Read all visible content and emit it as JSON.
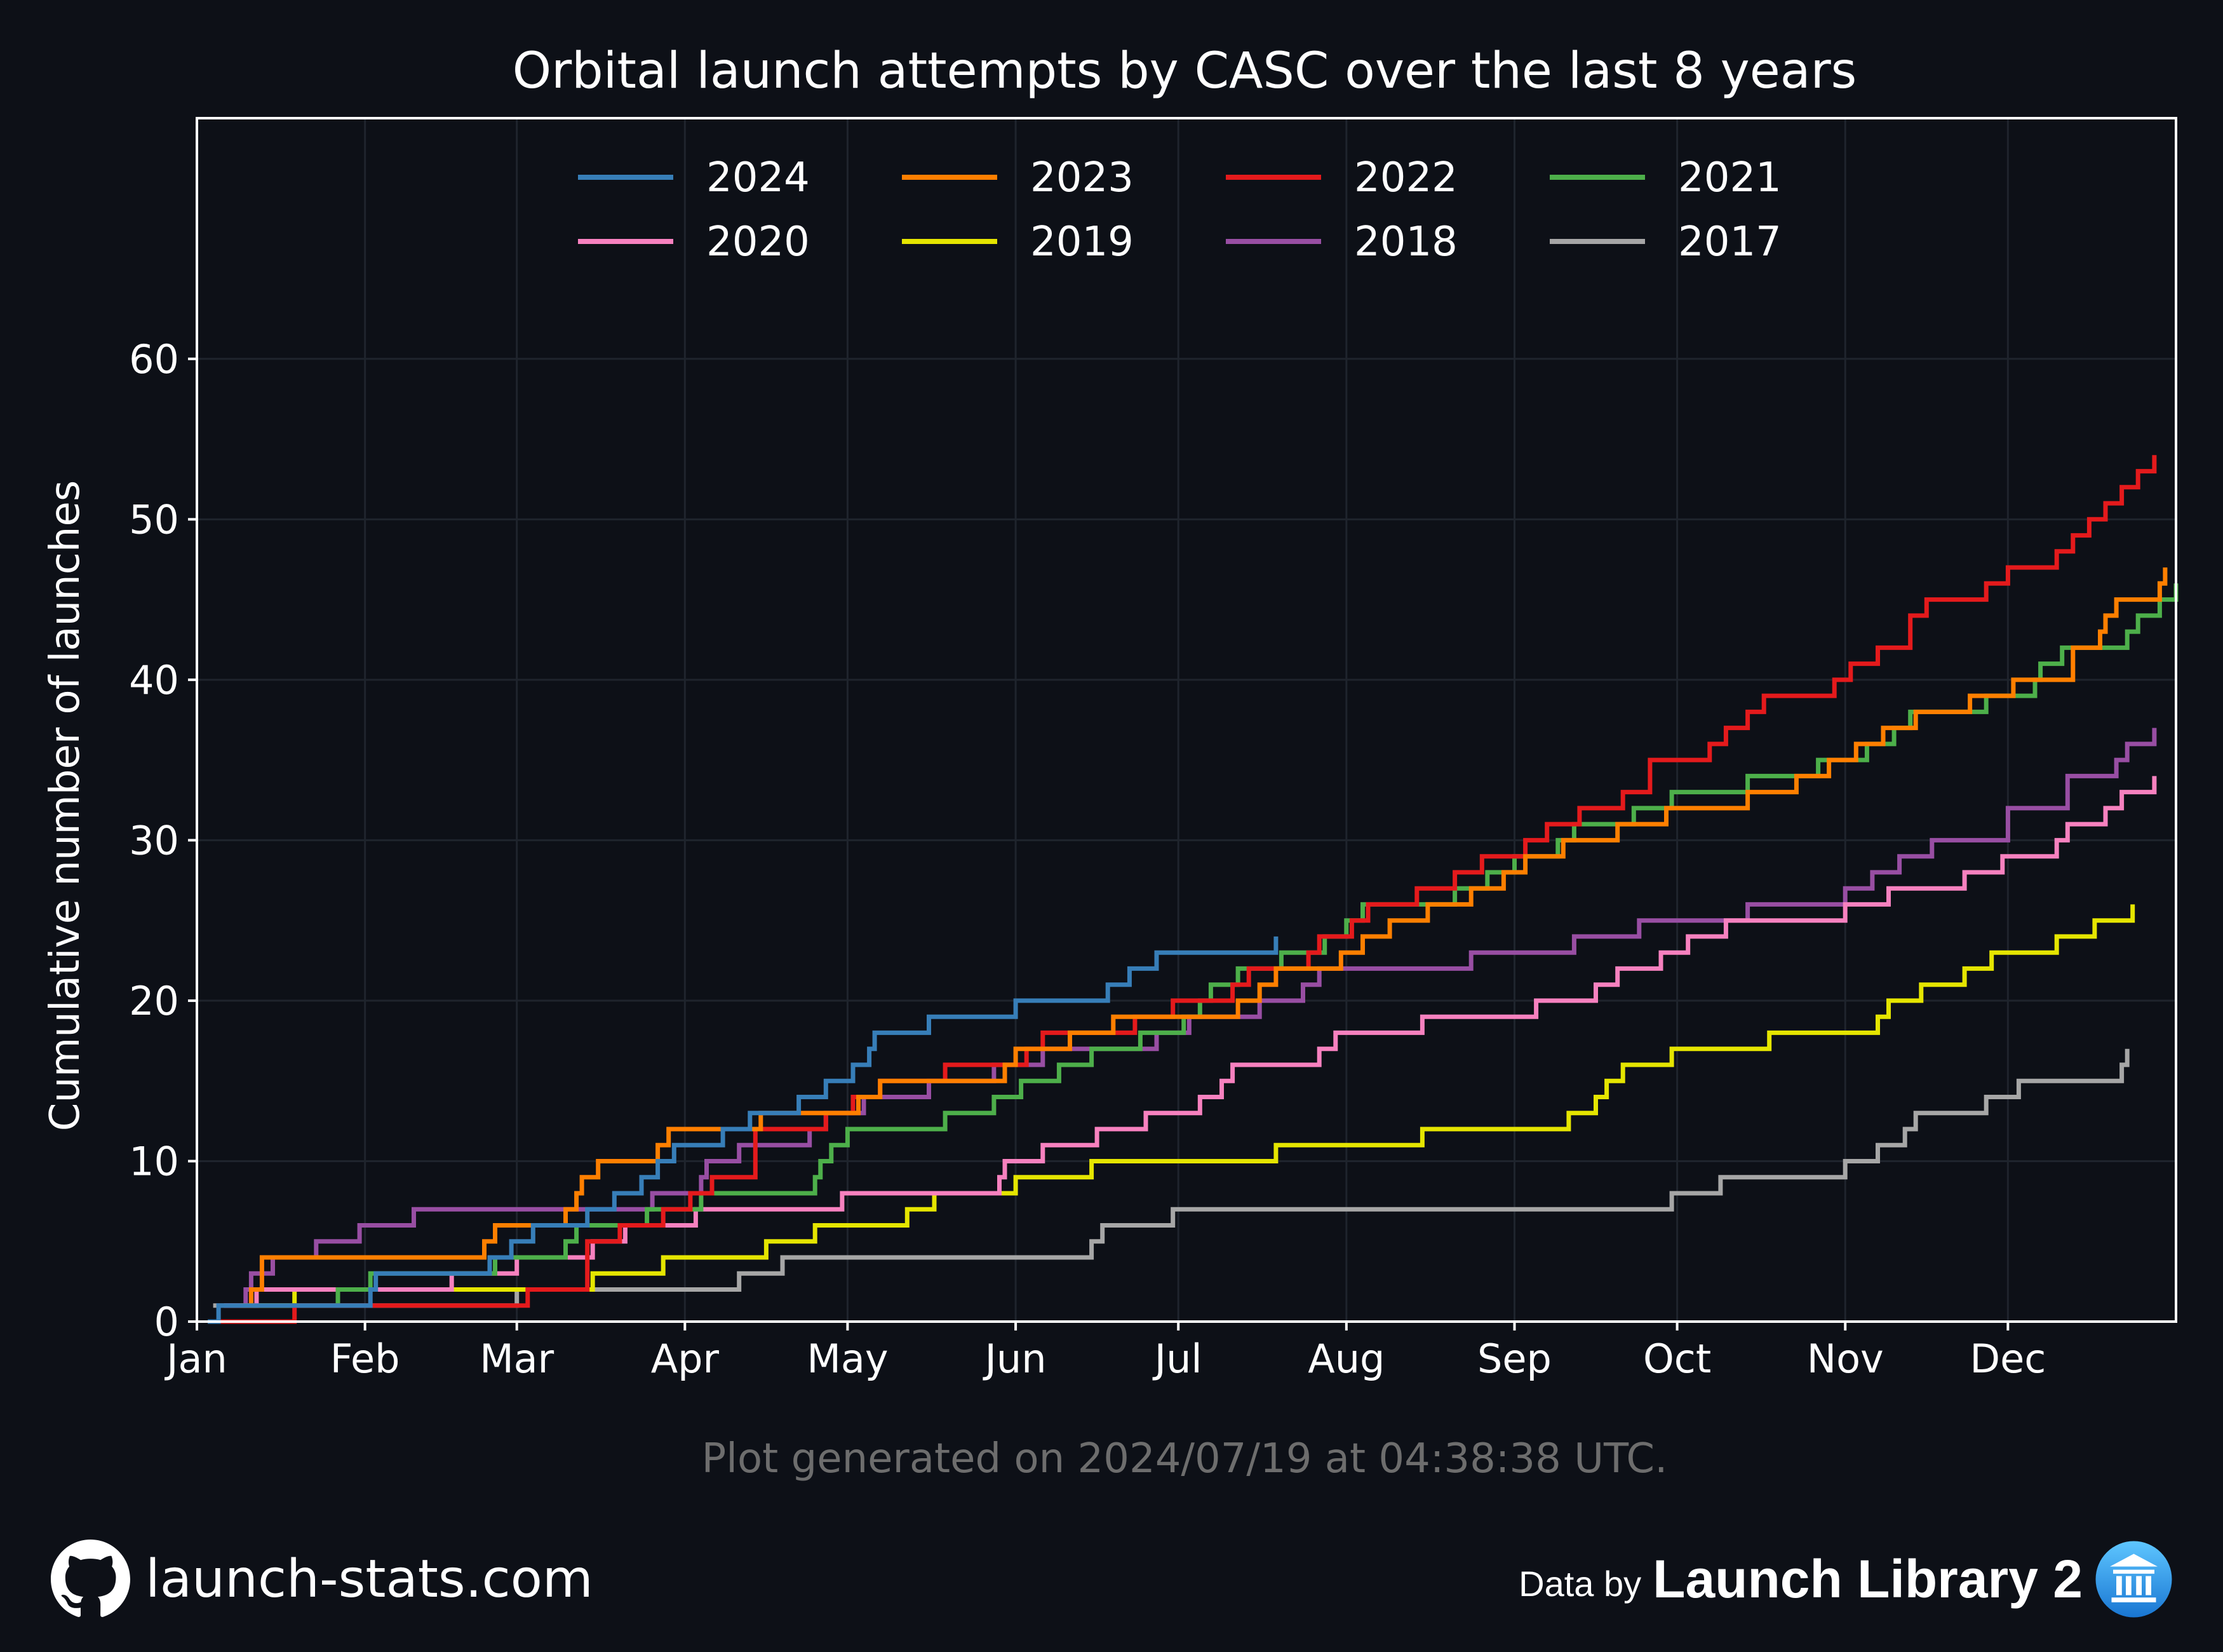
{
  "chart_data": {
    "type": "line",
    "title": "Orbital launch attempts by CASC over the last 8 years",
    "ylabel": "Cumulative number of launches",
    "xlabel": "",
    "x_tick_labels": [
      "Jan",
      "Feb",
      "Mar",
      "Apr",
      "May",
      "Jun",
      "Jul",
      "Aug",
      "Sep",
      "Oct",
      "Nov",
      "Dec"
    ],
    "y_ticks": [
      0,
      10,
      20,
      30,
      40,
      50,
      60
    ],
    "xlim_day_of_year": [
      1,
      366
    ],
    "ylim": [
      0,
      75
    ],
    "grid": true,
    "legend_position": "top-center",
    "step": true,
    "series": [
      {
        "name": "2024",
        "color": "#377eb8",
        "points": [
          [
            3,
            0
          ],
          [
            5,
            1
          ],
          [
            33,
            2
          ],
          [
            34,
            3
          ],
          [
            55,
            4
          ],
          [
            59,
            5
          ],
          [
            63,
            6
          ],
          [
            73,
            7
          ],
          [
            78,
            8
          ],
          [
            83,
            9
          ],
          [
            86,
            10
          ],
          [
            89,
            11
          ],
          [
            98,
            12
          ],
          [
            103,
            13
          ],
          [
            112,
            14
          ],
          [
            117,
            15
          ],
          [
            122,
            16
          ],
          [
            125,
            17
          ],
          [
            126,
            18
          ],
          [
            136,
            19
          ],
          [
            152,
            20
          ],
          [
            169,
            21
          ],
          [
            173,
            22
          ],
          [
            178,
            23
          ],
          [
            200,
            24
          ]
        ]
      },
      {
        "name": "2023",
        "color": "#ff7f00",
        "points": [
          [
            9,
            1
          ],
          [
            11,
            2
          ],
          [
            13,
            4
          ],
          [
            54,
            5
          ],
          [
            56,
            6
          ],
          [
            69,
            7
          ],
          [
            71,
            8
          ],
          [
            72,
            9
          ],
          [
            75,
            10
          ],
          [
            86,
            11
          ],
          [
            88,
            12
          ],
          [
            105,
            13
          ],
          [
            123,
            14
          ],
          [
            127,
            15
          ],
          [
            150,
            16
          ],
          [
            152,
            17
          ],
          [
            162,
            18
          ],
          [
            170,
            19
          ],
          [
            193,
            20
          ],
          [
            197,
            21
          ],
          [
            200,
            22
          ],
          [
            212,
            23
          ],
          [
            216,
            24
          ],
          [
            221,
            25
          ],
          [
            228,
            26
          ],
          [
            236,
            27
          ],
          [
            242,
            28
          ],
          [
            246,
            29
          ],
          [
            253,
            30
          ],
          [
            263,
            31
          ],
          [
            272,
            32
          ],
          [
            287,
            33
          ],
          [
            296,
            34
          ],
          [
            302,
            35
          ],
          [
            307,
            36
          ],
          [
            312,
            37
          ],
          [
            318,
            38
          ],
          [
            328,
            39
          ],
          [
            336,
            40
          ],
          [
            347,
            42
          ],
          [
            352,
            43
          ],
          [
            353,
            44
          ],
          [
            355,
            45
          ],
          [
            363,
            46
          ],
          [
            364,
            47
          ]
        ]
      },
      {
        "name": "2022",
        "color": "#e41a1c",
        "points": [
          [
            4,
            0
          ],
          [
            19,
            1
          ],
          [
            62,
            2
          ],
          [
            73,
            5
          ],
          [
            79,
            6
          ],
          [
            87,
            7
          ],
          [
            92,
            8
          ],
          [
            96,
            9
          ],
          [
            104,
            12
          ],
          [
            117,
            13
          ],
          [
            122,
            14
          ],
          [
            127,
            15
          ],
          [
            139,
            16
          ],
          [
            154,
            17
          ],
          [
            157,
            18
          ],
          [
            174,
            19
          ],
          [
            181,
            20
          ],
          [
            192,
            21
          ],
          [
            195,
            22
          ],
          [
            206,
            23
          ],
          [
            208,
            24
          ],
          [
            214,
            25
          ],
          [
            217,
            26
          ],
          [
            226,
            27
          ],
          [
            233,
            28
          ],
          [
            238,
            29
          ],
          [
            246,
            30
          ],
          [
            250,
            31
          ],
          [
            256,
            32
          ],
          [
            264,
            33
          ],
          [
            269,
            35
          ],
          [
            280,
            36
          ],
          [
            283,
            37
          ],
          [
            287,
            38
          ],
          [
            290,
            39
          ],
          [
            303,
            40
          ],
          [
            306,
            41
          ],
          [
            311,
            42
          ],
          [
            317,
            44
          ],
          [
            320,
            45
          ],
          [
            331,
            46
          ],
          [
            335,
            47
          ],
          [
            344,
            48
          ],
          [
            347,
            49
          ],
          [
            350,
            50
          ],
          [
            353,
            51
          ],
          [
            356,
            52
          ],
          [
            359,
            53
          ],
          [
            362,
            54
          ]
        ]
      },
      {
        "name": "2021",
        "color": "#4daf4a",
        "points": [
          [
            18,
            1
          ],
          [
            27,
            2
          ],
          [
            33,
            3
          ],
          [
            50,
            3
          ],
          [
            56,
            4
          ],
          [
            69,
            5
          ],
          [
            71,
            6
          ],
          [
            84,
            7
          ],
          [
            94,
            8
          ],
          [
            115,
            9
          ],
          [
            116,
            10
          ],
          [
            118,
            11
          ],
          [
            121,
            12
          ],
          [
            139,
            13
          ],
          [
            148,
            14
          ],
          [
            153,
            15
          ],
          [
            160,
            16
          ],
          [
            166,
            17
          ],
          [
            175,
            18
          ],
          [
            183,
            19
          ],
          [
            186,
            20
          ],
          [
            188,
            21
          ],
          [
            193,
            22
          ],
          [
            201,
            23
          ],
          [
            209,
            24
          ],
          [
            213,
            25
          ],
          [
            216,
            26
          ],
          [
            233,
            27
          ],
          [
            239,
            28
          ],
          [
            244,
            29
          ],
          [
            252,
            30
          ],
          [
            255,
            31
          ],
          [
            266,
            32
          ],
          [
            273,
            33
          ],
          [
            287,
            34
          ],
          [
            300,
            35
          ],
          [
            309,
            36
          ],
          [
            314,
            37
          ],
          [
            317,
            38
          ],
          [
            331,
            39
          ],
          [
            340,
            40
          ],
          [
            341,
            41
          ],
          [
            345,
            42
          ],
          [
            357,
            43
          ],
          [
            359,
            44
          ],
          [
            363,
            45
          ],
          [
            366,
            46
          ]
        ]
      },
      {
        "name": "2020",
        "color": "#f781bf",
        "points": [
          [
            6,
            1
          ],
          [
            12,
            2
          ],
          [
            48,
            3
          ],
          [
            60,
            4
          ],
          [
            74,
            5
          ],
          [
            80,
            6
          ],
          [
            93,
            7
          ],
          [
            120,
            8
          ],
          [
            149,
            9
          ],
          [
            150,
            10
          ],
          [
            157,
            11
          ],
          [
            167,
            12
          ],
          [
            176,
            13
          ],
          [
            186,
            14
          ],
          [
            190,
            15
          ],
          [
            192,
            16
          ],
          [
            208,
            17
          ],
          [
            211,
            18
          ],
          [
            227,
            19
          ],
          [
            248,
            20
          ],
          [
            259,
            21
          ],
          [
            263,
            22
          ],
          [
            271,
            23
          ],
          [
            276,
            24
          ],
          [
            283,
            25
          ],
          [
            305,
            26
          ],
          [
            313,
            27
          ],
          [
            327,
            28
          ],
          [
            334,
            29
          ],
          [
            344,
            30
          ],
          [
            346,
            31
          ],
          [
            353,
            32
          ],
          [
            356,
            33
          ],
          [
            362,
            34
          ]
        ]
      },
      {
        "name": "2019",
        "color": "#e5e500",
        "points": [
          [
            9,
            1
          ],
          [
            19,
            2
          ],
          [
            74,
            3
          ],
          [
            87,
            4
          ],
          [
            106,
            5
          ],
          [
            115,
            6
          ],
          [
            132,
            7
          ],
          [
            137,
            8
          ],
          [
            152,
            9
          ],
          [
            166,
            10
          ],
          [
            200,
            11
          ],
          [
            227,
            12
          ],
          [
            254,
            13
          ],
          [
            259,
            14
          ],
          [
            261,
            15
          ],
          [
            264,
            16
          ],
          [
            273,
            17
          ],
          [
            291,
            18
          ],
          [
            311,
            19
          ],
          [
            313,
            20
          ],
          [
            319,
            21
          ],
          [
            327,
            22
          ],
          [
            332,
            23
          ],
          [
            344,
            24
          ],
          [
            351,
            25
          ],
          [
            358,
            26
          ]
        ]
      },
      {
        "name": "2018",
        "color": "#984ea3",
        "points": [
          [
            9,
            1
          ],
          [
            10,
            2
          ],
          [
            11,
            3
          ],
          [
            15,
            4
          ],
          [
            23,
            5
          ],
          [
            31,
            6
          ],
          [
            41,
            7
          ],
          [
            78,
            7
          ],
          [
            85,
            8
          ],
          [
            94,
            9
          ],
          [
            95,
            10
          ],
          [
            101,
            11
          ],
          [
            114,
            12
          ],
          [
            117,
            13
          ],
          [
            124,
            14
          ],
          [
            136,
            15
          ],
          [
            148,
            16
          ],
          [
            157,
            17
          ],
          [
            178,
            18
          ],
          [
            184,
            19
          ],
          [
            197,
            20
          ],
          [
            205,
            21
          ],
          [
            208,
            22
          ],
          [
            236,
            23
          ],
          [
            255,
            24
          ],
          [
            267,
            25
          ],
          [
            287,
            26
          ],
          [
            305,
            27
          ],
          [
            310,
            28
          ],
          [
            315,
            29
          ],
          [
            321,
            30
          ],
          [
            323,
            30
          ],
          [
            335,
            32
          ],
          [
            346,
            34
          ],
          [
            355,
            35
          ],
          [
            357,
            36
          ],
          [
            362,
            37
          ]
        ]
      },
      {
        "name": "2017",
        "color": "#a6a6a6",
        "points": [
          [
            4,
            1
          ],
          [
            27,
            1
          ],
          [
            60,
            2
          ],
          [
            101,
            3
          ],
          [
            109,
            4
          ],
          [
            166,
            5
          ],
          [
            168,
            6
          ],
          [
            181,
            7
          ],
          [
            273,
            8
          ],
          [
            282,
            9
          ],
          [
            305,
            10
          ],
          [
            311,
            11
          ],
          [
            316,
            12
          ],
          [
            318,
            13
          ],
          [
            331,
            14
          ],
          [
            337,
            15
          ],
          [
            356,
            16
          ],
          [
            357,
            17
          ]
        ]
      }
    ]
  },
  "footer": {
    "generated_text": "Plot generated on 2024/07/19 at 04:38:38 UTC.",
    "site": "launch-stats.com",
    "data_by": "Data by",
    "source": "Launch Library 2"
  },
  "icons": {
    "site": "github-icon",
    "source": "launch-library-logo-icon"
  },
  "colors": {
    "background": "#0d1017",
    "text": "#ffffff",
    "muted": "#6d6d6d"
  }
}
